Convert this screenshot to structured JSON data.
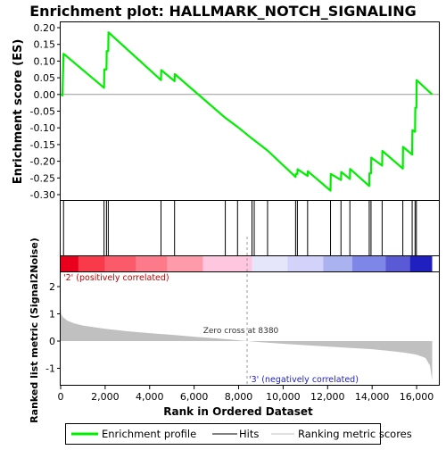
{
  "chart_data": {
    "type": "line",
    "title": "Enrichment plot: HALLMARK_NOTCH_SIGNALING",
    "xlabel": "Rank in Ordered Dataset",
    "es_panel": {
      "ylabel": "Enrichment score (ES)",
      "ylim": [
        -0.3,
        0.2
      ],
      "yticks": [
        0.2,
        0.15,
        0.1,
        0.05,
        0.0,
        -0.05,
        -0.1,
        -0.15,
        -0.2,
        -0.25,
        -0.3
      ],
      "ytick_labels": [
        "0.20",
        "0.15",
        "0.10",
        "0.05",
        "0.00",
        "-0.05",
        "-0.10",
        "-0.15",
        "-0.20",
        "-0.25",
        "-0.30"
      ],
      "series": [
        {
          "name": "Enrichment profile",
          "color": "#00ee00",
          "points": [
            [
              0,
              0.0
            ],
            [
              80,
              -0.003
            ],
            [
              130,
              0.122
            ],
            [
              1950,
              0.02
            ],
            [
              1960,
              0.075
            ],
            [
              2060,
              0.075
            ],
            [
              2070,
              0.13
            ],
            [
              2140,
              0.13
            ],
            [
              2150,
              0.186
            ],
            [
              4510,
              0.043
            ],
            [
              4520,
              0.073
            ],
            [
              5120,
              0.04
            ],
            [
              5130,
              0.061
            ],
            [
              7400,
              -0.07
            ],
            [
              7950,
              -0.097
            ],
            [
              8600,
              -0.132
            ],
            [
              9300,
              -0.168
            ],
            [
              10560,
              -0.247
            ],
            [
              10570,
              -0.238
            ],
            [
              10640,
              -0.238
            ],
            [
              10650,
              -0.224
            ],
            [
              11100,
              -0.244
            ],
            [
              11110,
              -0.23
            ],
            [
              12130,
              -0.288
            ],
            [
              12140,
              -0.238
            ],
            [
              12600,
              -0.256
            ],
            [
              12610,
              -0.232
            ],
            [
              13000,
              -0.253
            ],
            [
              13010,
              -0.223
            ],
            [
              13870,
              -0.274
            ],
            [
              13880,
              -0.236
            ],
            [
              13950,
              -0.236
            ],
            [
              13960,
              -0.189
            ],
            [
              14450,
              -0.213
            ],
            [
              14460,
              -0.169
            ],
            [
              15380,
              -0.222
            ],
            [
              15390,
              -0.157
            ],
            [
              15800,
              -0.18
            ],
            [
              15810,
              -0.107
            ],
            [
              15930,
              -0.112
            ],
            [
              15940,
              -0.04
            ],
            [
              15990,
              -0.04
            ],
            [
              16000,
              0.043
            ],
            [
              16700,
              0.0
            ]
          ]
        }
      ]
    },
    "hits": [
      130,
      1950,
      2060,
      2140,
      4510,
      5120,
      7400,
      7950,
      8600,
      8700,
      9300,
      10560,
      10640,
      11100,
      12130,
      12600,
      13000,
      13870,
      13950,
      14450,
      15380,
      15800,
      15930,
      15990
    ],
    "rank_panel": {
      "ylabel": "Ranked list metric (Signal2Noise)",
      "ylim": [
        -1.5,
        2.5
      ],
      "yticks": [
        2,
        1,
        0,
        -1
      ],
      "ytick_labels": [
        "2",
        "1",
        "0",
        "-1"
      ],
      "fill_color": "#c0c0c0",
      "metric_profile": [
        [
          0,
          1.25
        ],
        [
          20,
          1.0
        ],
        [
          100,
          0.88
        ],
        [
          300,
          0.75
        ],
        [
          600,
          0.65
        ],
        [
          1000,
          0.57
        ],
        [
          2000,
          0.45
        ],
        [
          3000,
          0.36
        ],
        [
          4000,
          0.29
        ],
        [
          5000,
          0.23
        ],
        [
          6000,
          0.16
        ],
        [
          7000,
          0.1
        ],
        [
          8000,
          0.03
        ],
        [
          8380,
          0.0
        ],
        [
          9000,
          -0.04
        ],
        [
          10000,
          -0.1
        ],
        [
          11000,
          -0.15
        ],
        [
          12000,
          -0.2
        ],
        [
          13000,
          -0.25
        ],
        [
          14000,
          -0.3
        ],
        [
          15000,
          -0.38
        ],
        [
          15500,
          -0.43
        ],
        [
          16000,
          -0.5
        ],
        [
          16400,
          -0.62
        ],
        [
          16600,
          -0.9
        ],
        [
          16700,
          -1.45
        ]
      ],
      "zero_cross_label": "Zero cross at 8380",
      "zero_cross_x": 8380,
      "pos_label": "'2' (positively correlated)",
      "neg_label": "'3' (negatively correlated)"
    },
    "xlim": [
      0,
      17000
    ],
    "data_max": 16700,
    "xticks": [
      0,
      2000,
      4000,
      6000,
      8000,
      10000,
      12000,
      14000,
      16000
    ],
    "xtick_labels": [
      "0",
      "2,000",
      "4,000",
      "6,000",
      "8,000",
      "10,000",
      "12,000",
      "14,000",
      "16,000"
    ],
    "colorbar_segments": [
      {
        "from": 0,
        "to": 800,
        "color": "#e8001c"
      },
      {
        "from": 800,
        "to": 2000,
        "color": "#f83a4a"
      },
      {
        "from": 2000,
        "to": 3400,
        "color": "#fa5a6a"
      },
      {
        "from": 3400,
        "to": 4800,
        "color": "#fc7a8a"
      },
      {
        "from": 4800,
        "to": 6400,
        "color": "#fe9aaa"
      },
      {
        "from": 6400,
        "to": 8600,
        "color": "#ffc6e0"
      },
      {
        "from": 8600,
        "to": 10200,
        "color": "#e6e6fa"
      },
      {
        "from": 10200,
        "to": 11800,
        "color": "#d2d2fa"
      },
      {
        "from": 11800,
        "to": 13100,
        "color": "#aab2f0"
      },
      {
        "from": 13100,
        "to": 14600,
        "color": "#7e86e8"
      },
      {
        "from": 14600,
        "to": 15700,
        "color": "#5a5ad6"
      },
      {
        "from": 15700,
        "to": 16700,
        "color": "#2020c0"
      }
    ],
    "legend": {
      "placement": "bottom",
      "entries": [
        {
          "label": "Enrichment profile",
          "color": "#00ee00"
        },
        {
          "label": "Hits",
          "color": "#000000"
        },
        {
          "label": "Ranking metric scores",
          "color": "#c0c0c0"
        }
      ]
    }
  }
}
